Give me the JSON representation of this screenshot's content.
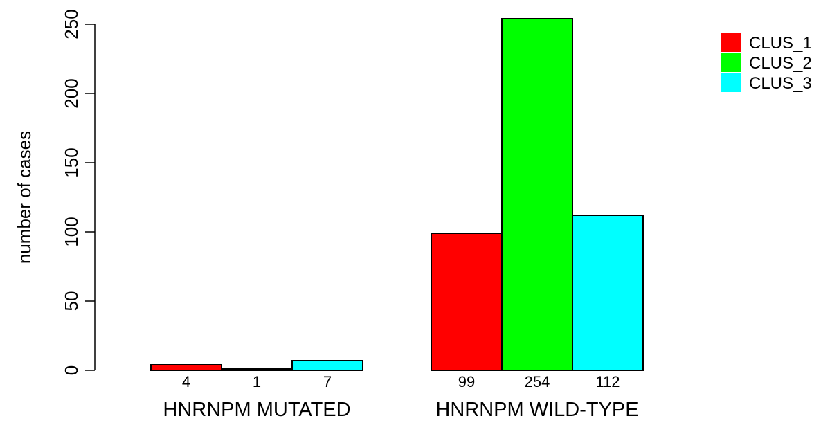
{
  "chart_data": {
    "type": "bar",
    "layout": "grouped",
    "title": "",
    "xlabel": "",
    "ylabel": "number of cases",
    "ylim": [
      0,
      254
    ],
    "yticks": [
      0,
      50,
      100,
      150,
      200,
      250
    ],
    "categories": [
      "HNRNPM MUTATED",
      "HNRNPM WILD-TYPE"
    ],
    "series": [
      {
        "name": "CLUS_1",
        "color": "#ff0000",
        "values": [
          4,
          99
        ]
      },
      {
        "name": "CLUS_2",
        "color": "#00ff00",
        "values": [
          1,
          254
        ]
      },
      {
        "name": "CLUS_3",
        "color": "#00ffff",
        "values": [
          7,
          112
        ]
      }
    ],
    "data_labels": [
      [
        "4",
        "1",
        "7"
      ],
      [
        "99",
        "254",
        "112"
      ]
    ],
    "legend": {
      "position": "top-right"
    },
    "grid": false
  }
}
